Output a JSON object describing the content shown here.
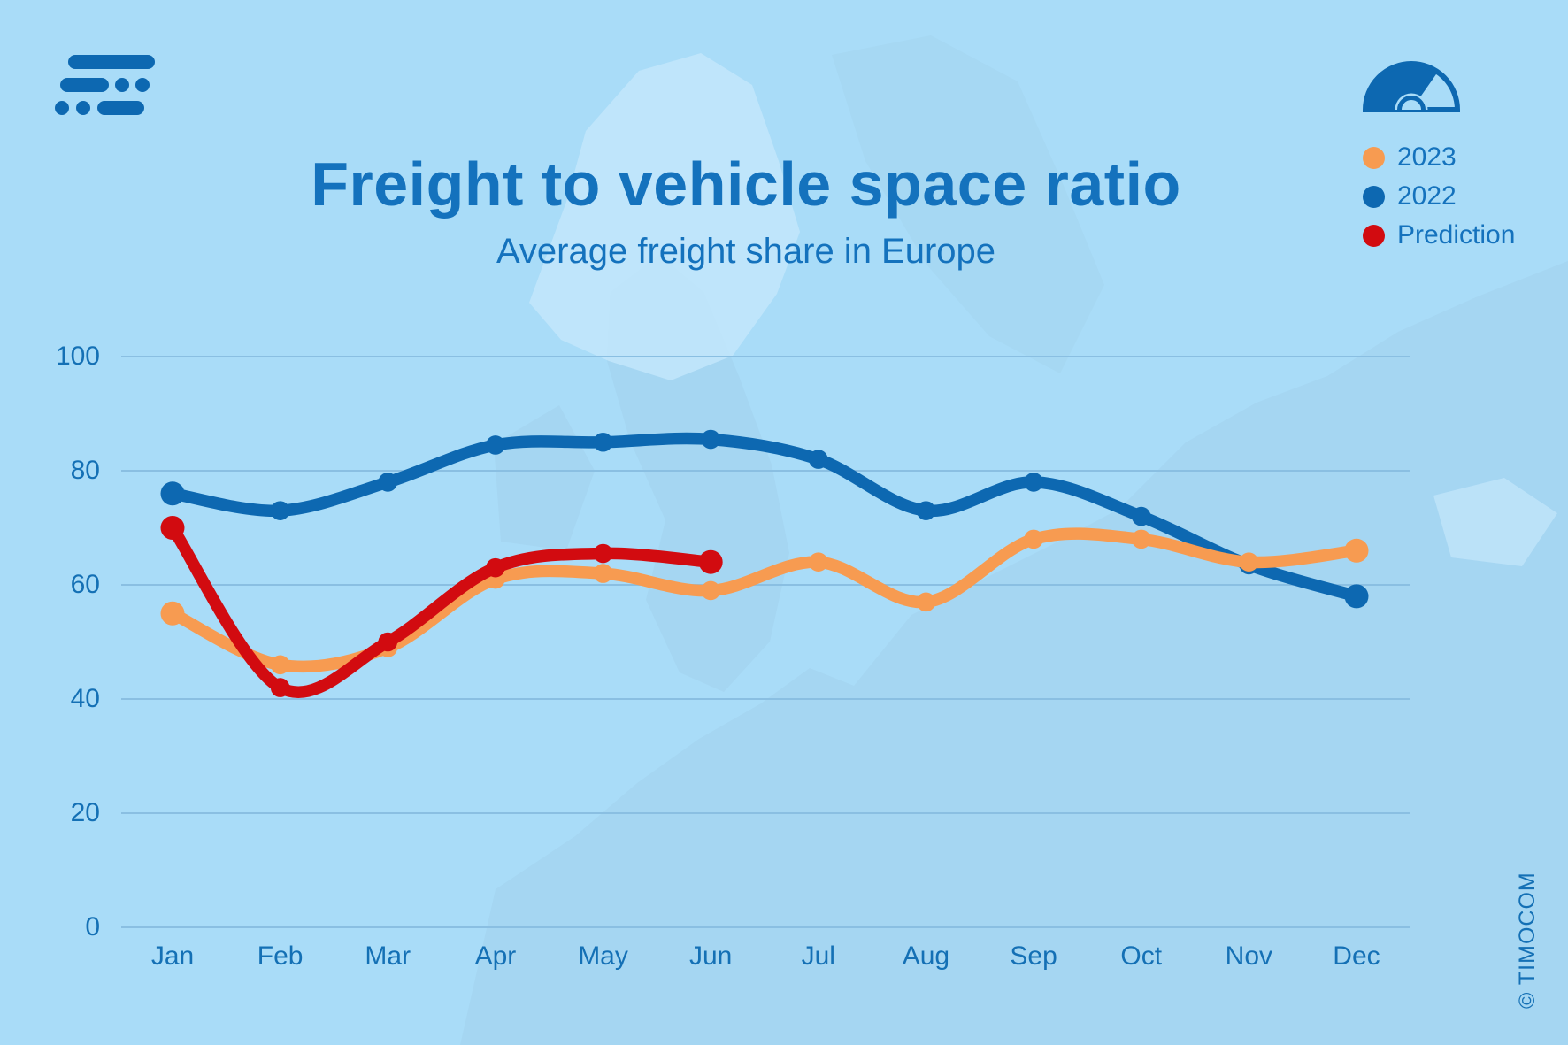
{
  "header": {
    "title": "Freight to vehicle space ratio",
    "subtitle": "Average freight share in Europe"
  },
  "legend": {
    "items": [
      {
        "label": "2023",
        "color": "#f79b51"
      },
      {
        "label": "2022",
        "color": "#0d68b1"
      },
      {
        "label": "Prediction",
        "color": "#d20b10"
      }
    ]
  },
  "footer": {
    "copyright": "© TIMOCOM"
  },
  "colors": {
    "background": "#a9dcf8",
    "brand_blue": "#0d68b1",
    "title_text": "#1472bd",
    "axis_text": "#1470b5",
    "gridline": "#8abfe2",
    "map_land": "#a2d2ec",
    "map_land_light": "#c4e7fb"
  },
  "chart_data": {
    "type": "line",
    "title": "Freight to vehicle space ratio",
    "subtitle": "Average freight share in Europe",
    "categories": [
      "Jan",
      "Feb",
      "Mar",
      "Apr",
      "May",
      "Jun",
      "Jul",
      "Aug",
      "Sep",
      "Oct",
      "Nov",
      "Dec"
    ],
    "series": [
      {
        "name": "2023",
        "color": "#f79b51",
        "values": [
          55,
          46,
          49,
          61,
          62,
          59,
          64,
          57,
          68,
          68,
          64,
          66
        ]
      },
      {
        "name": "2022",
        "color": "#0d68b1",
        "values": [
          76,
          73,
          78,
          84.5,
          85,
          85.5,
          82,
          73,
          78,
          72,
          63.5,
          58
        ]
      },
      {
        "name": "Prediction",
        "color": "#d20b10",
        "values": [
          70,
          42,
          50,
          63,
          65.5,
          64,
          null,
          null,
          null,
          null,
          null,
          null
        ]
      }
    ],
    "xlabel": "",
    "ylabel": "",
    "ylim": [
      0,
      100
    ],
    "yticks": [
      100,
      80,
      60,
      40,
      20,
      0
    ],
    "grid": true,
    "legend_position": "top-right"
  }
}
